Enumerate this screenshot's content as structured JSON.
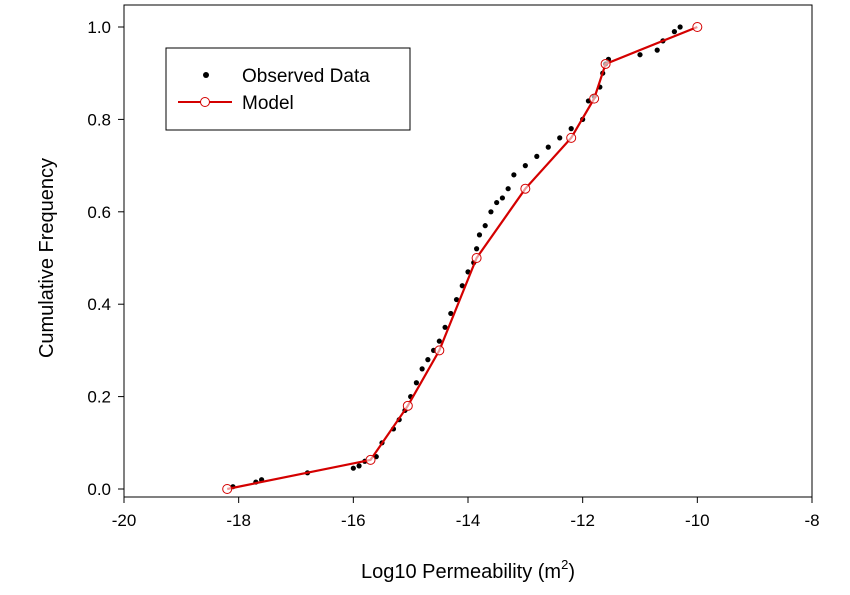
{
  "chart_data": {
    "type": "line",
    "title": "",
    "xlabel_main": "Log10 Permeability (m",
    "xlabel_sup": "2",
    "xlabel_tail": ")",
    "ylabel": "Cumulative Frequency",
    "xlim": [
      -20,
      -8
    ],
    "ylim": [
      0,
      1.0
    ],
    "x_ticks": [
      -20,
      -18,
      -16,
      -14,
      -12,
      -10,
      -8
    ],
    "x_tick_labels": [
      "-20",
      "-18",
      "-16",
      "-14",
      "-12",
      "-10",
      "-8"
    ],
    "y_ticks": [
      0,
      0.2,
      0.4,
      0.6,
      0.8,
      1.0
    ],
    "y_tick_labels": [
      "0.0",
      "0.2",
      "0.4",
      "0.6",
      "0.8",
      "1.0"
    ],
    "grid": false,
    "legend_position": "top-left",
    "series": [
      {
        "name": "Observed Data",
        "style": "points",
        "color": "#000000",
        "x": [
          -18.1,
          -17.7,
          -17.6,
          -16.8,
          -16.0,
          -15.9,
          -15.8,
          -15.6,
          -15.5,
          -15.3,
          -15.2,
          -15.1,
          -15.0,
          -14.9,
          -14.8,
          -14.7,
          -14.6,
          -14.5,
          -14.4,
          -14.3,
          -14.2,
          -14.1,
          -14.0,
          -13.9,
          -13.85,
          -13.8,
          -13.7,
          -13.6,
          -13.5,
          -13.4,
          -13.3,
          -13.2,
          -13.0,
          -12.8,
          -12.6,
          -12.4,
          -12.2,
          -12.0,
          -11.9,
          -11.8,
          -11.7,
          -11.65,
          -11.6,
          -11.55,
          -11.0,
          -10.7,
          -10.6,
          -10.4,
          -10.3
        ],
        "y": [
          0.005,
          0.015,
          0.02,
          0.035,
          0.045,
          0.05,
          0.06,
          0.07,
          0.1,
          0.13,
          0.15,
          0.17,
          0.2,
          0.23,
          0.26,
          0.28,
          0.3,
          0.32,
          0.35,
          0.38,
          0.41,
          0.44,
          0.47,
          0.49,
          0.52,
          0.55,
          0.57,
          0.6,
          0.62,
          0.63,
          0.65,
          0.68,
          0.7,
          0.72,
          0.74,
          0.76,
          0.78,
          0.8,
          0.84,
          0.85,
          0.87,
          0.9,
          0.92,
          0.93,
          0.94,
          0.95,
          0.97,
          0.99,
          1.0
        ]
      },
      {
        "name": "Model",
        "style": "line-open-circle",
        "color": "#d40000",
        "x": [
          -18.2,
          -15.7,
          -15.05,
          -14.5,
          -13.85,
          -13.0,
          -12.2,
          -11.8,
          -11.6,
          -10.0
        ],
        "y": [
          0.0,
          0.063,
          0.18,
          0.3,
          0.5,
          0.65,
          0.76,
          0.845,
          0.92,
          1.0
        ]
      }
    ]
  }
}
